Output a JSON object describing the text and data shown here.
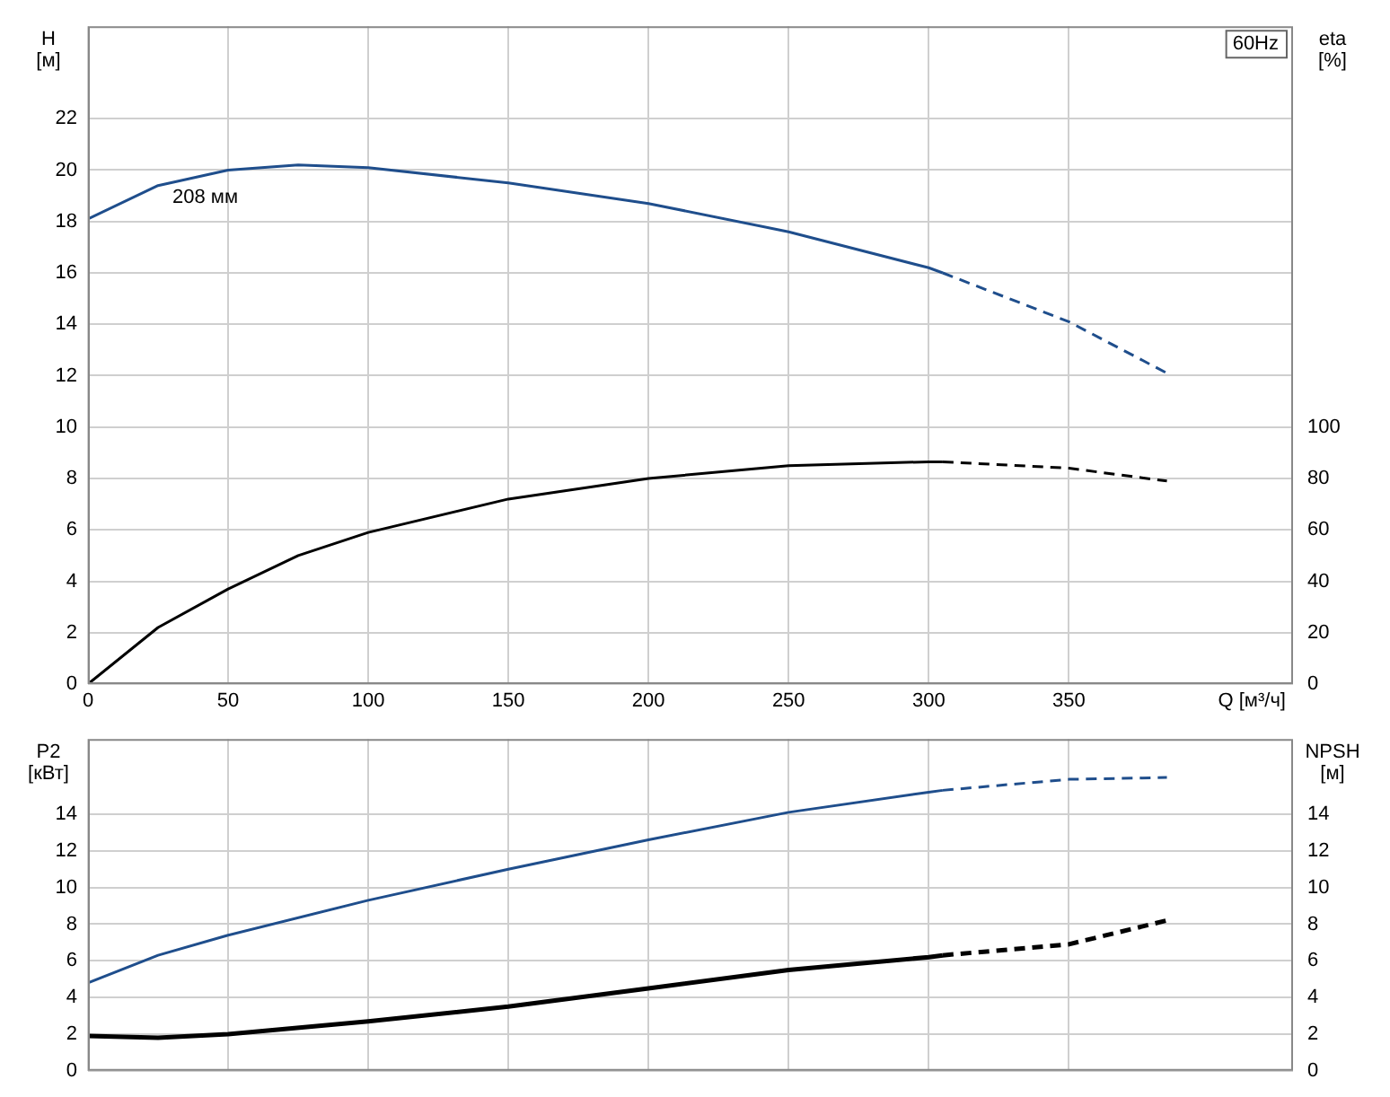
{
  "chart_data": [
    {
      "type": "line",
      "xlabel": "Q [м³/ч]",
      "ylabel": "H [м]",
      "y2label": "eta [%]",
      "annotations": [
        "60Hz"
      ],
      "xlim": [
        0,
        430
      ],
      "xticks": [
        0,
        50,
        100,
        150,
        200,
        250,
        300,
        350
      ],
      "ylim": [
        0,
        25.6
      ],
      "yticks": [
        0,
        2,
        4,
        6,
        8,
        10,
        12,
        14,
        16,
        18,
        20,
        22
      ],
      "y2lim": [
        0,
        256
      ],
      "y2ticks": [
        0,
        20,
        40,
        60,
        80,
        100
      ],
      "grid": true,
      "legend": false,
      "series": [
        {
          "name": "208 мм",
          "color": "#1f4e8c",
          "line_style": "solid",
          "x": [
            0,
            25,
            50,
            75,
            100,
            150,
            200,
            250,
            300,
            305
          ],
          "values": [
            18.1,
            19.4,
            20.0,
            20.2,
            20.1,
            19.5,
            18.7,
            17.6,
            16.2,
            16.0
          ]
        },
        {
          "color": "#1f4e8c",
          "line_style": "dashed",
          "x": [
            305,
            350,
            385
          ],
          "values": [
            16.0,
            14.1,
            12.1
          ]
        },
        {
          "color": "#000000",
          "line_style": "solid",
          "axis": "y2",
          "x": [
            0,
            25,
            50,
            75,
            100,
            150,
            200,
            250,
            300,
            305
          ],
          "values": [
            0,
            22,
            37,
            50,
            59,
            72,
            80,
            85,
            86.5,
            86.5
          ]
        },
        {
          "color": "#000000",
          "line_style": "dashed",
          "axis": "y2",
          "x": [
            305,
            350,
            385
          ],
          "values": [
            86.5,
            84,
            79
          ]
        }
      ]
    },
    {
      "type": "line",
      "ylabel": "P2 [кВт]",
      "y2label": "NPSH [м]",
      "xlim": [
        0,
        430
      ],
      "xticks": [
        0,
        50,
        100,
        150,
        200,
        250,
        300,
        350
      ],
      "tick_labels": "y",
      "ylim": [
        0,
        18.1
      ],
      "yticks": [
        0,
        2,
        4,
        6,
        8,
        10,
        12,
        14
      ],
      "y2lim": [
        0,
        18.1
      ],
      "y2ticks": [
        0,
        2,
        4,
        6,
        8,
        10,
        12,
        14
      ],
      "grid": true,
      "legend": false,
      "series": [
        {
          "color": "#1f4e8c",
          "line_style": "solid",
          "x": [
            0,
            25,
            50,
            100,
            150,
            200,
            250,
            300,
            305
          ],
          "values": [
            4.8,
            6.3,
            7.4,
            9.3,
            11.0,
            12.6,
            14.1,
            15.2,
            15.3
          ]
        },
        {
          "color": "#1f4e8c",
          "line_style": "dashed",
          "x": [
            305,
            350,
            385
          ],
          "values": [
            15.3,
            15.9,
            16.0
          ]
        },
        {
          "color": "#000000",
          "line_style": "solid",
          "axis": "y2",
          "x": [
            0,
            25,
            50,
            100,
            150,
            200,
            250,
            300,
            305
          ],
          "values": [
            1.9,
            1.8,
            2.0,
            2.7,
            3.5,
            4.5,
            5.5,
            6.2,
            6.3
          ]
        },
        {
          "color": "#000000",
          "line_style": "dashed",
          "axis": "y2",
          "x": [
            305,
            350,
            385
          ],
          "values": [
            6.3,
            6.9,
            8.2
          ]
        }
      ]
    }
  ]
}
